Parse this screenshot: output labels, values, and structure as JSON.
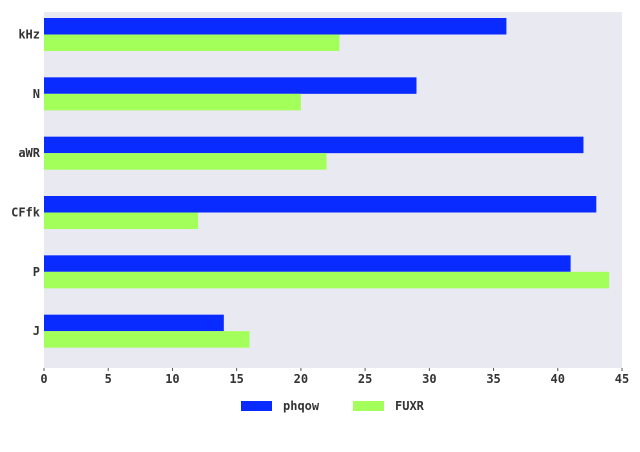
{
  "chart_data": {
    "type": "bar",
    "orientation": "horizontal",
    "categories": [
      "kHz",
      "N",
      "aWR",
      "CFfk",
      "P",
      "J"
    ],
    "series": [
      {
        "name": "phqow",
        "color": "#0a2bff",
        "values": [
          36,
          29,
          42,
          43,
          41,
          14
        ]
      },
      {
        "name": "FUXR",
        "color": "#a3ff5a",
        "values": [
          23,
          20,
          22,
          12,
          44,
          16
        ]
      }
    ],
    "xlim": [
      0,
      45
    ],
    "xticks": [
      0,
      5,
      10,
      15,
      20,
      25,
      30,
      35,
      40,
      45
    ],
    "plot_background": "#e9e9f2",
    "grid": false,
    "legend": "bottom-center",
    "title": "",
    "xlabel": "",
    "ylabel": ""
  }
}
